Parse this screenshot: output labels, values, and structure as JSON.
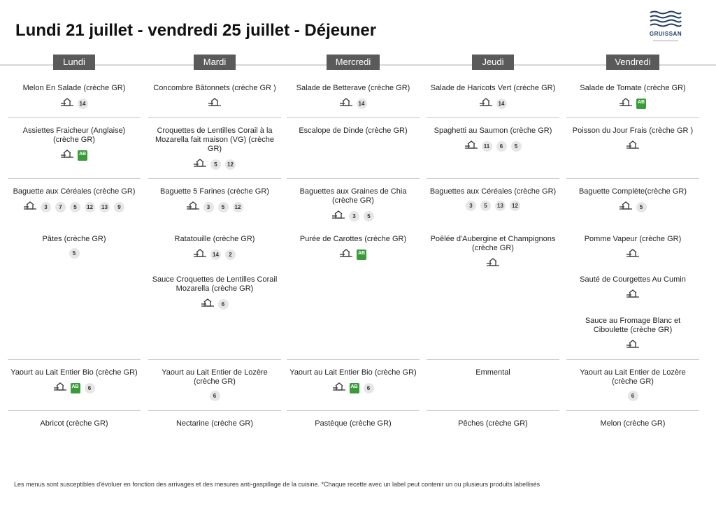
{
  "title": "Lundi 21 juillet - vendredi 25 juillet  - Déjeuner",
  "logo": {
    "text": "GRUISSAN"
  },
  "footer": "Les menus sont susceptibles d'évoluer en fonction des arrivages et des mesures anti-gaspillage de la cuisine. *Chaque recette avec un label peut contenir un ou plusieurs produits labellisés",
  "colors": {
    "badge": "#5a5a5a",
    "bio": "#3a9b3a",
    "logo": "#1d3a63"
  },
  "days": [
    {
      "label": "Lundi",
      "dishes": [
        {
          "name": "Melon En Salade (crèche GR)",
          "tags": [
            "house",
            "14"
          ]
        },
        {
          "name": "Assiettes Fraicheur (Anglaise)  (crèche GR)",
          "tags": [
            "house",
            "bio"
          ]
        },
        {
          "name": "Baguette aux Céréales (crèche GR)",
          "tags": [
            "house",
            "3",
            "7",
            "5",
            "12",
            "13",
            "9"
          ]
        },
        {
          "name": "Pâtes (crèche GR)",
          "tags": [
            "5"
          ]
        },
        {
          "name": "Yaourt au Lait Entier Bio (crèche GR)",
          "tags": [
            "house",
            "bio",
            "6"
          ]
        },
        {
          "name": "Abricot (crèche GR)",
          "tags": []
        }
      ]
    },
    {
      "label": "Mardi",
      "dishes": [
        {
          "name": "Concombre Bâtonnets (crèche GR )",
          "tags": [
            "house"
          ]
        },
        {
          "name": "Croquettes de Lentilles Corail à la Mozarella fait maison (VG) (crèche GR)",
          "tags": [
            "house",
            "5",
            "12"
          ]
        },
        {
          "name": "Baguette 5 Farines (crèche GR)",
          "tags": [
            "house",
            "3",
            "5",
            "12"
          ]
        },
        {
          "name": "Ratatouille (crèche GR)",
          "tags": [
            "house",
            "14",
            "2"
          ]
        },
        {
          "name": "Sauce Croquettes de Lentilles Corail Mozarella (crèche GR)",
          "tags": [
            "house",
            "6"
          ]
        },
        {
          "name": "Yaourt au Lait Entier de Lozère (crèche GR)",
          "tags": [
            "6"
          ]
        },
        {
          "name": "Nectarine  (crèche GR)",
          "tags": []
        }
      ]
    },
    {
      "label": "Mercredi",
      "dishes": [
        {
          "name": "Salade de Betterave (crèche GR)",
          "tags": [
            "house",
            "14"
          ]
        },
        {
          "name": "Escalope de Dinde (crèche GR)",
          "tags": []
        },
        {
          "name": "Baguettes aux Graines de Chia (crèche GR)",
          "tags": [
            "house",
            "3",
            "5"
          ]
        },
        {
          "name": "Purée de Carottes (crèche GR)",
          "tags": [
            "house",
            "bio"
          ]
        },
        {
          "name": "Yaourt au Lait Entier Bio (crèche GR)",
          "tags": [
            "house",
            "bio",
            "6"
          ]
        },
        {
          "name": "Pastèque (crèche GR)",
          "tags": []
        }
      ]
    },
    {
      "label": "Jeudi",
      "dishes": [
        {
          "name": "Salade de Haricots Vert (crèche GR)",
          "tags": [
            "house",
            "14"
          ]
        },
        {
          "name": "Spaghetti au Saumon (crèche GR)",
          "tags": [
            "house",
            "11",
            "6",
            "5"
          ]
        },
        {
          "name": "Baguettes aux Céréales (crèche GR)",
          "tags": [
            "3",
            "5",
            "13",
            "12"
          ]
        },
        {
          "name": "Poêlée d'Aubergine et Champignons (crèche GR)",
          "tags": [
            "house"
          ]
        },
        {
          "name": "Emmental",
          "tags": []
        },
        {
          "name": "Pêches (crèche GR)",
          "tags": []
        }
      ]
    },
    {
      "label": "Vendredi",
      "dishes": [
        {
          "name": "Salade de Tomate  (crèche GR)",
          "tags": [
            "house",
            "bio"
          ]
        },
        {
          "name": "Poisson du Jour Frais (crèche GR )",
          "tags": [
            "house"
          ]
        },
        {
          "name": "Baguette Complète(crèche GR)",
          "tags": [
            "house",
            "5"
          ]
        },
        {
          "name": "Pomme Vapeur (crèche GR)",
          "tags": [
            "house"
          ]
        },
        {
          "name": "Sauté de Courgettes Au Cumin",
          "tags": [
            "house"
          ]
        },
        {
          "name": "Sauce au Fromage Blanc et Ciboulette (crèche GR)",
          "tags": [
            "house"
          ]
        },
        {
          "name": "Yaourt au Lait Entier de Lozère (crèche GR)",
          "tags": [
            "6"
          ]
        },
        {
          "name": "Melon (crèche GR)",
          "tags": []
        }
      ]
    }
  ]
}
